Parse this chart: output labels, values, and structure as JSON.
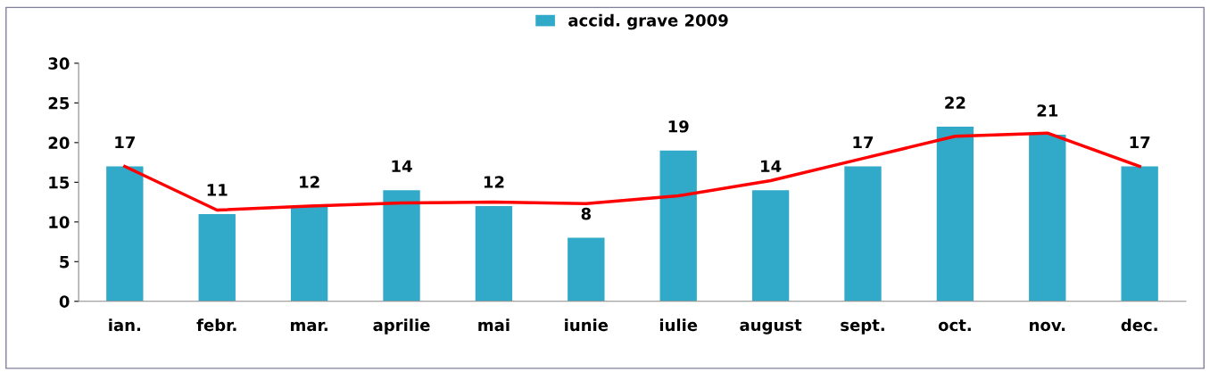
{
  "chart_data": {
    "type": "bar",
    "categories": [
      "ian.",
      "febr.",
      "mar.",
      "aprilie",
      "mai",
      "iunie",
      "iulie",
      "august",
      "sept.",
      "oct.",
      "nov.",
      "dec."
    ],
    "series": [
      {
        "name": "accid. grave 2009",
        "color": "#31a9c8",
        "values": [
          17,
          11,
          12,
          14,
          12,
          8,
          19,
          14,
          17,
          22,
          21,
          17
        ],
        "value_labels": [
          "17",
          "11",
          "12",
          "14",
          "12",
          "8",
          "19",
          "14",
          "17",
          "22",
          "21",
          "17"
        ]
      },
      {
        "type": "line",
        "color": "#ff0000",
        "values": [
          17.0,
          11.5,
          12.0,
          12.4,
          12.5,
          12.3,
          13.3,
          15.2,
          18.0,
          20.8,
          21.2,
          17.0
        ]
      }
    ],
    "ylim": [
      0,
      30
    ],
    "yticks": [
      0,
      5,
      10,
      15,
      20,
      25,
      30
    ],
    "legend": "top",
    "grid": false
  }
}
